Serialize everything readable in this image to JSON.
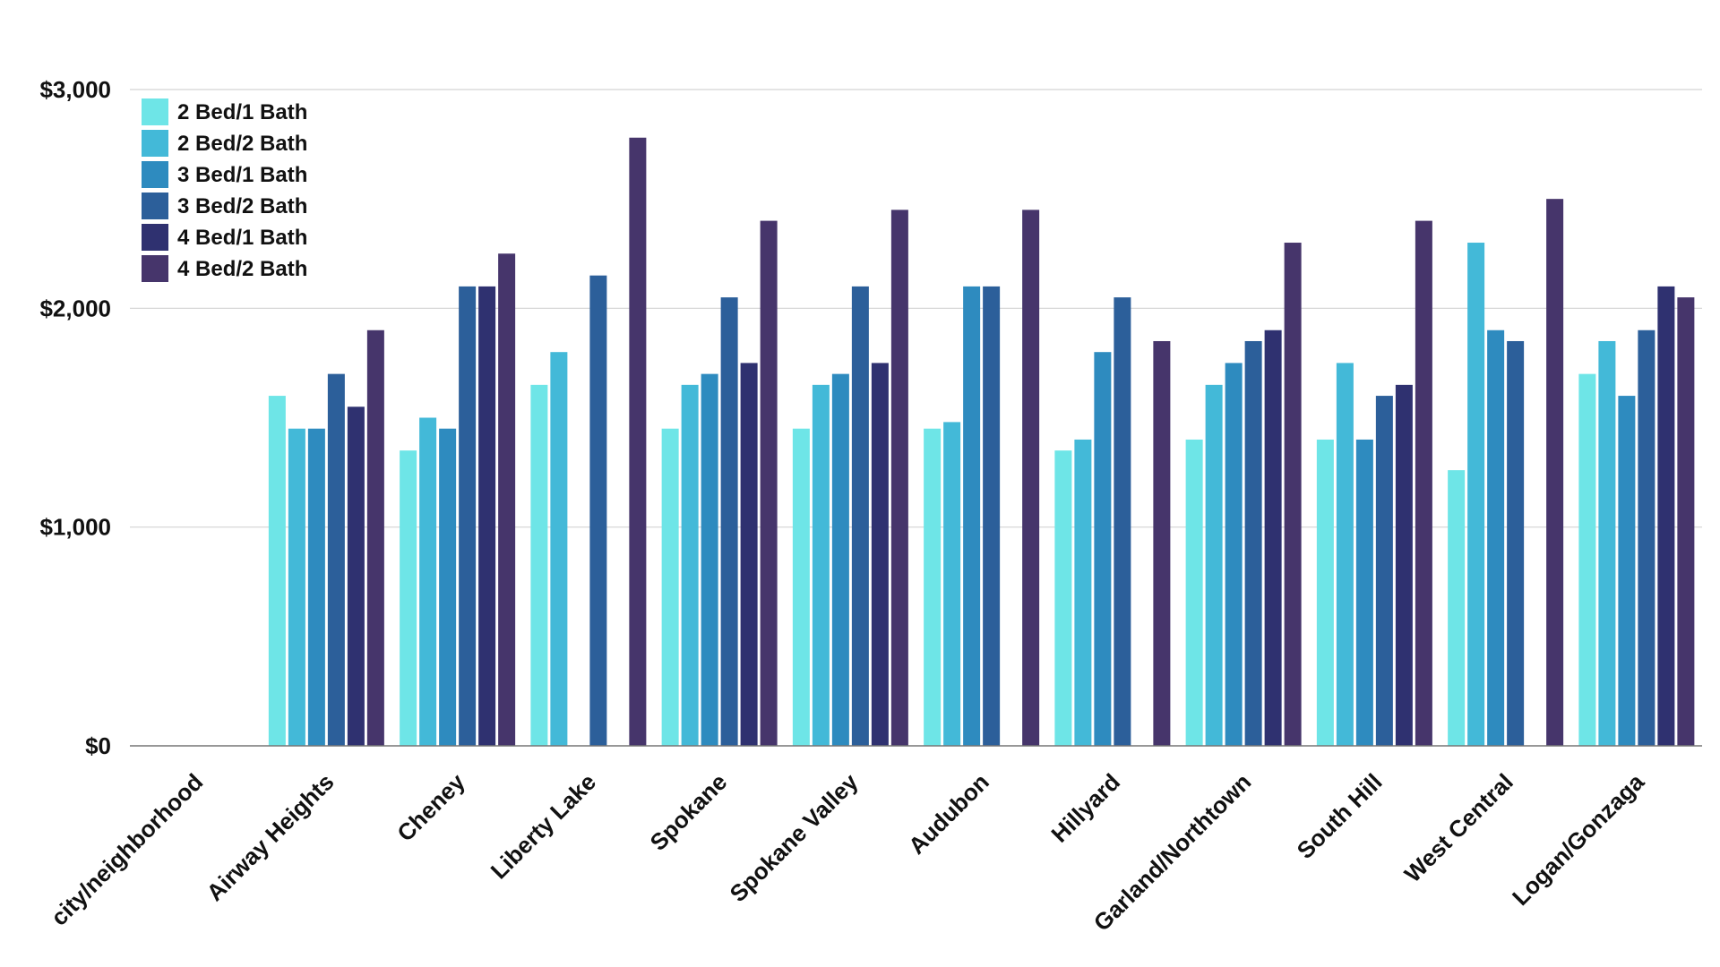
{
  "chart_data": {
    "type": "bar",
    "categories": [
      "city/neighborhood",
      "Airway Heights",
      "Cheney",
      "Liberty Lake",
      "Spokane",
      "Spokane Valley",
      "Audubon",
      "Hillyard",
      "Garland/Northtown",
      "South Hill",
      "West Central",
      "Logan/Gonzaga"
    ],
    "series": [
      {
        "name": "2 Bed/1 Bath",
        "color": "#6ee5e7",
        "values": [
          null,
          1600,
          1350,
          1650,
          1450,
          1450,
          1450,
          1350,
          1400,
          1400,
          1260,
          1700
        ]
      },
      {
        "name": "2 Bed/2 Bath",
        "color": "#43b9d8",
        "values": [
          null,
          1450,
          1500,
          1800,
          1650,
          1650,
          1480,
          1400,
          1650,
          1750,
          2300,
          1850
        ]
      },
      {
        "name": "3 Bed/1 Bath",
        "color": "#2e8bbf",
        "values": [
          null,
          1450,
          1450,
          null,
          1700,
          1700,
          2100,
          1800,
          1750,
          1400,
          1900,
          1600
        ]
      },
      {
        "name": "3 Bed/2 Bath",
        "color": "#2c5f9a",
        "values": [
          null,
          1700,
          2100,
          2150,
          2050,
          2100,
          2100,
          2050,
          1850,
          1600,
          1850,
          1900
        ]
      },
      {
        "name": "4 Bed/1 Bath",
        "color": "#2f3170",
        "values": [
          null,
          1550,
          2100,
          null,
          1750,
          1750,
          null,
          null,
          1900,
          1650,
          null,
          2100
        ]
      },
      {
        "name": "4 Bed/2 Bath",
        "color": "#46356b",
        "values": [
          null,
          1900,
          2250,
          2780,
          2400,
          2450,
          2450,
          1850,
          2300,
          2400,
          2500,
          2050
        ]
      }
    ],
    "y_ticks": [
      "$0",
      "$1,000",
      "$2,000",
      "$3,000"
    ],
    "y_tick_values": [
      0,
      1000,
      2000,
      3000
    ],
    "ylim": [
      0,
      3000
    ],
    "grid": true,
    "legend_position": "top-left",
    "title": "",
    "xlabel": "",
    "ylabel": ""
  }
}
